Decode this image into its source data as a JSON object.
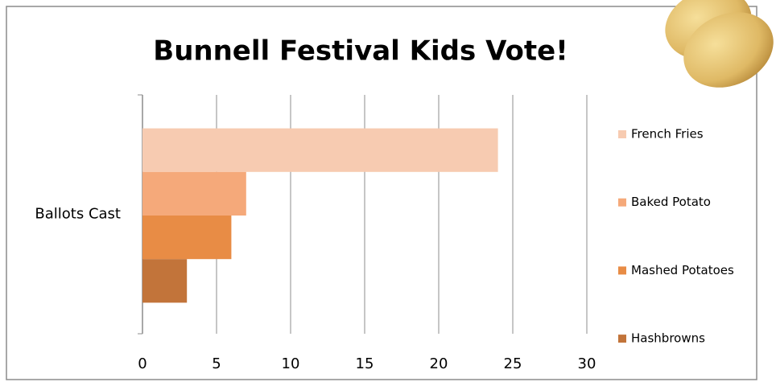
{
  "chart_data": {
    "type": "bar",
    "orientation": "horizontal",
    "title": "Bunnell Festival Kids Vote!",
    "categories": [
      "Ballots Cast"
    ],
    "series": [
      {
        "name": "French Fries",
        "color": "#f7cbb1",
        "values": [
          24
        ]
      },
      {
        "name": "Baked Potato",
        "color": "#f5a97a",
        "values": [
          7
        ]
      },
      {
        "name": "Mashed Potatoes",
        "color": "#e88c45",
        "values": [
          6
        ]
      },
      {
        "name": "Hashbrowns",
        "color": "#c2743a",
        "values": [
          3
        ]
      }
    ],
    "xlim": [
      0,
      30
    ],
    "xticks": [
      0,
      5,
      10,
      15,
      20,
      25,
      30
    ],
    "grid": true,
    "legend": "right"
  }
}
